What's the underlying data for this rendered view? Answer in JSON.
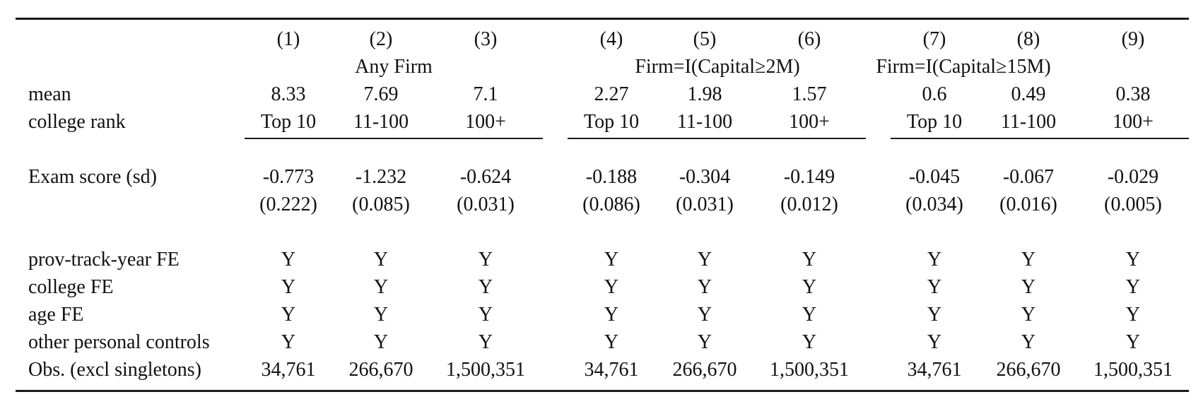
{
  "table": {
    "column_numbers": [
      "(1)",
      "(2)",
      "(3)",
      "(4)",
      "(5)",
      "(6)",
      "(7)",
      "(8)",
      "(9)"
    ],
    "groups": [
      "Any Firm",
      "Firm=I(Capital≥2M)",
      "Firm=I(Capital≥15M)"
    ],
    "mean_row": {
      "label": "mean",
      "values": [
        "8.33",
        "7.69",
        "7.1",
        "2.27",
        "1.98",
        "1.57",
        "0.6",
        "0.49",
        "0.38"
      ]
    },
    "rank_row": {
      "label": "college rank",
      "values": [
        "Top 10",
        "11-100",
        "100+",
        "Top 10",
        "11-100",
        "100+",
        "Top 10",
        "11-100",
        "100+"
      ]
    },
    "exam_row": {
      "label": "Exam score (sd)",
      "coefficients": [
        "-0.773",
        "-1.232",
        "-0.624",
        "-0.188",
        "-0.304",
        "-0.149",
        "-0.045",
        "-0.067",
        "-0.029"
      ],
      "std_errors": [
        "(0.222)",
        "(0.085)",
        "(0.031)",
        "(0.086)",
        "(0.031)",
        "(0.012)",
        "(0.034)",
        "(0.016)",
        "(0.005)"
      ]
    },
    "controls": [
      {
        "label": "prov-track-year FE",
        "values": [
          "Y",
          "Y",
          "Y",
          "Y",
          "Y",
          "Y",
          "Y",
          "Y",
          "Y"
        ]
      },
      {
        "label": "college FE",
        "values": [
          "Y",
          "Y",
          "Y",
          "Y",
          "Y",
          "Y",
          "Y",
          "Y",
          "Y"
        ]
      },
      {
        "label": "age FE",
        "values": [
          "Y",
          "Y",
          "Y",
          "Y",
          "Y",
          "Y",
          "Y",
          "Y",
          "Y"
        ]
      },
      {
        "label": "other personal controls",
        "values": [
          "Y",
          "Y",
          "Y",
          "Y",
          "Y",
          "Y",
          "Y",
          "Y",
          "Y"
        ]
      }
    ],
    "obs_row": {
      "label": "Obs. (excl singletons)",
      "values": [
        "34,761",
        "266,670",
        "1,500,351",
        "34,761",
        "266,670",
        "1,500,351",
        "34,761",
        "266,670",
        "1,500,351"
      ]
    }
  }
}
